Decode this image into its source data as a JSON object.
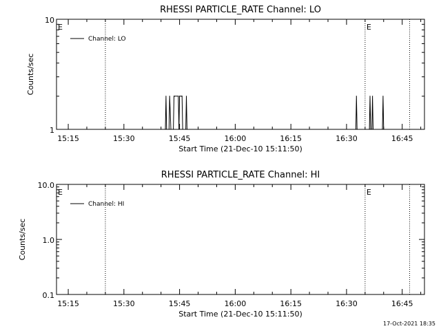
{
  "footer": {
    "timestamp": "17-Oct-2021 18:35"
  },
  "chart_data": [
    {
      "type": "line",
      "title": "RHESSI PARTICLE_RATE Channel: LO",
      "xlabel": "Start Time (21-Dec-10 15:11:50)",
      "ylabel": "Counts/sec",
      "y_scale": "log",
      "ylim": [
        1,
        10
      ],
      "ytick_labels": [
        "1",
        "10"
      ],
      "xlim": [
        "15:11:50",
        "16:51:00"
      ],
      "xtick_labels": [
        "15:15",
        "15:30",
        "15:45",
        "16:00",
        "16:15",
        "16:30",
        "16:45"
      ],
      "grid": false,
      "legend_placement": "top-left",
      "legend_label": "Channel: LO",
      "vertical_lines": [
        "15:25:00",
        "16:35:00",
        "16:47:00"
      ],
      "event_markers": [
        {
          "label": "E",
          "time": "15:11:50"
        },
        {
          "label": "E",
          "time": "16:35:00"
        }
      ],
      "series": [
        {
          "name": "Channel: LO",
          "x": [
            "15:41:10",
            "15:41:20",
            "15:41:30",
            "15:42:10",
            "15:42:20",
            "15:42:40",
            "15:43:20",
            "15:43:30",
            "15:43:40",
            "15:44:40",
            "15:44:50",
            "15:45:00",
            "15:45:30",
            "15:45:40",
            "15:45:50",
            "15:46:40",
            "15:46:50",
            "15:47:00",
            "16:32:30",
            "16:32:40",
            "16:32:50",
            "16:36:10",
            "16:36:20",
            "16:36:30",
            "16:36:50",
            "16:37:00",
            "16:37:10",
            "16:39:40",
            "16:39:50",
            "16:40:00"
          ],
          "values": [
            1,
            2,
            1,
            1,
            2,
            1,
            1,
            2,
            2,
            2,
            1,
            2,
            2,
            2,
            1,
            1,
            2,
            1,
            1,
            2,
            1,
            1,
            2,
            1,
            1,
            2,
            1,
            1,
            2,
            1
          ]
        }
      ]
    },
    {
      "type": "line",
      "title": "RHESSI PARTICLE_RATE Channel: HI",
      "xlabel": "Start Time (21-Dec-10 15:11:50)",
      "ylabel": "Counts/sec",
      "y_scale": "log",
      "ylim": [
        0.1,
        10
      ],
      "ytick_labels": [
        "0.1",
        "1.0",
        "10.0"
      ],
      "xlim": [
        "15:11:50",
        "16:51:00"
      ],
      "xtick_labels": [
        "15:15",
        "15:30",
        "15:45",
        "16:00",
        "16:15",
        "16:30",
        "16:45"
      ],
      "grid": false,
      "legend_placement": "top-left",
      "legend_label": "Channel: HI",
      "vertical_lines": [
        "15:25:00",
        "16:35:00",
        "16:47:00"
      ],
      "event_markers": [
        {
          "label": "E",
          "time": "15:11:50"
        },
        {
          "label": "E",
          "time": "16:35:00"
        }
      ],
      "series": [
        {
          "name": "Channel: HI",
          "x": [],
          "values": []
        }
      ]
    }
  ]
}
